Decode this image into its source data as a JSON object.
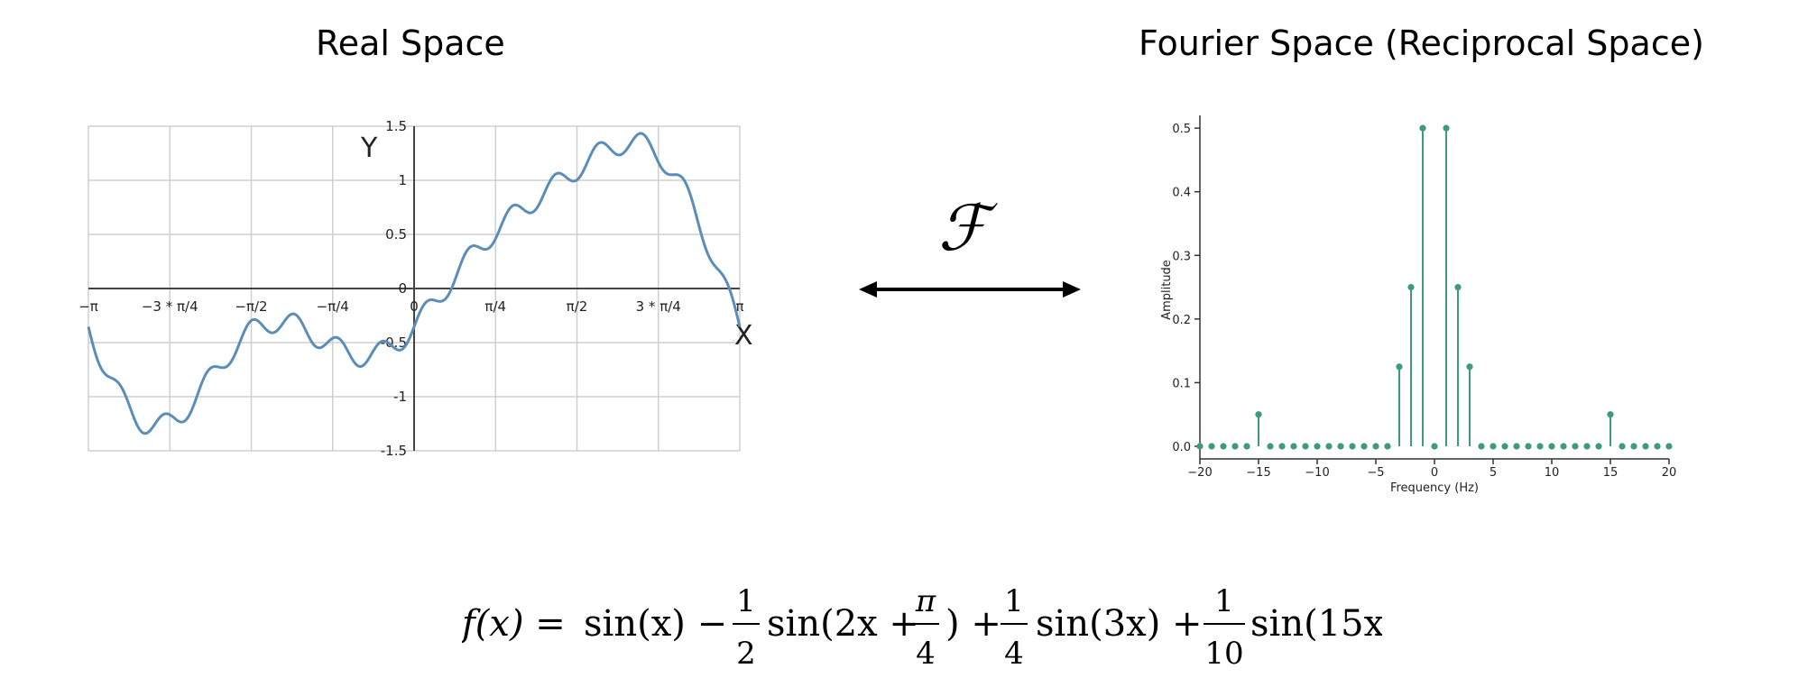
{
  "titles": {
    "left": "Real Space",
    "right": "Fourier Space (Reciprocal Space)"
  },
  "transform_symbol": "ℱ",
  "formula": {
    "lhs": "f(x) = ",
    "term1": "sin(x) − ",
    "frac1_num": "1",
    "frac1_den": "2",
    "term2a": "sin(2x + ",
    "frac2_num": "π",
    "frac2_den": "4",
    "term2b": ") + ",
    "frac3_num": "1",
    "frac3_den": "4",
    "term3": "sin(3x) + ",
    "frac4_num": "1",
    "frac4_den": "10",
    "term4": "sin(15x)"
  },
  "chart_data": [
    {
      "type": "line",
      "title": "",
      "xlabel": "X",
      "ylabel": "Y",
      "xlim": [
        -3.14159,
        3.14159
      ],
      "ylim": [
        -1.5,
        1.5
      ],
      "x_ticks": [
        {
          "value": -3.14159,
          "label": "−π"
        },
        {
          "value": -2.35619,
          "label": "−3 * π/4"
        },
        {
          "value": -1.5708,
          "label": "−π/2"
        },
        {
          "value": -0.7854,
          "label": "−π/4"
        },
        {
          "value": 0,
          "label": "0"
        },
        {
          "value": 0.7854,
          "label": "π/4"
        },
        {
          "value": 1.5708,
          "label": "π/2"
        },
        {
          "value": 2.35619,
          "label": "3 * π/4"
        },
        {
          "value": 3.14159,
          "label": "π"
        }
      ],
      "y_ticks": [
        {
          "value": 1.5,
          "label": "1.5"
        },
        {
          "value": 1,
          "label": "1"
        },
        {
          "value": 0.5,
          "label": "0.5"
        },
        {
          "value": 0,
          "label": "0"
        },
        {
          "value": -0.5,
          "label": "-0.5"
        },
        {
          "value": -1,
          "label": "-1"
        },
        {
          "value": -1.5,
          "label": "-1.5"
        }
      ],
      "grid": true,
      "series": [
        {
          "function": "sin(x) - 0.5*sin(2x + pi/4) + 0.25*sin(3x) + 0.1*sin(15x)",
          "color": "#5b8db8"
        }
      ]
    },
    {
      "type": "stem",
      "title": "",
      "xlabel": "Frequency (Hz)",
      "ylabel": "Amplitude",
      "xlim": [
        -20,
        20
      ],
      "ylim": [
        0,
        0.52
      ],
      "x_ticks": [
        -20,
        -15,
        -10,
        -5,
        0,
        5,
        10,
        15,
        20
      ],
      "y_ticks": [
        0.0,
        0.1,
        0.2,
        0.3,
        0.4,
        0.5
      ],
      "grid": false,
      "color": "#3d9a7a",
      "x": [
        -20,
        -19,
        -18,
        -17,
        -16,
        -15,
        -14,
        -13,
        -12,
        -11,
        -10,
        -9,
        -8,
        -7,
        -6,
        -5,
        -4,
        -3,
        -2,
        -1,
        0,
        1,
        2,
        3,
        4,
        5,
        6,
        7,
        8,
        9,
        10,
        11,
        12,
        13,
        14,
        15,
        16,
        17,
        18,
        19,
        20
      ],
      "values": [
        0,
        0,
        0,
        0,
        0,
        0.05,
        0,
        0,
        0,
        0,
        0,
        0,
        0,
        0,
        0,
        0,
        0,
        0.125,
        0.25,
        0.5,
        0,
        0.5,
        0.25,
        0.125,
        0,
        0,
        0,
        0,
        0,
        0,
        0,
        0,
        0,
        0,
        0,
        0.05,
        0,
        0,
        0,
        0,
        0
      ]
    }
  ]
}
